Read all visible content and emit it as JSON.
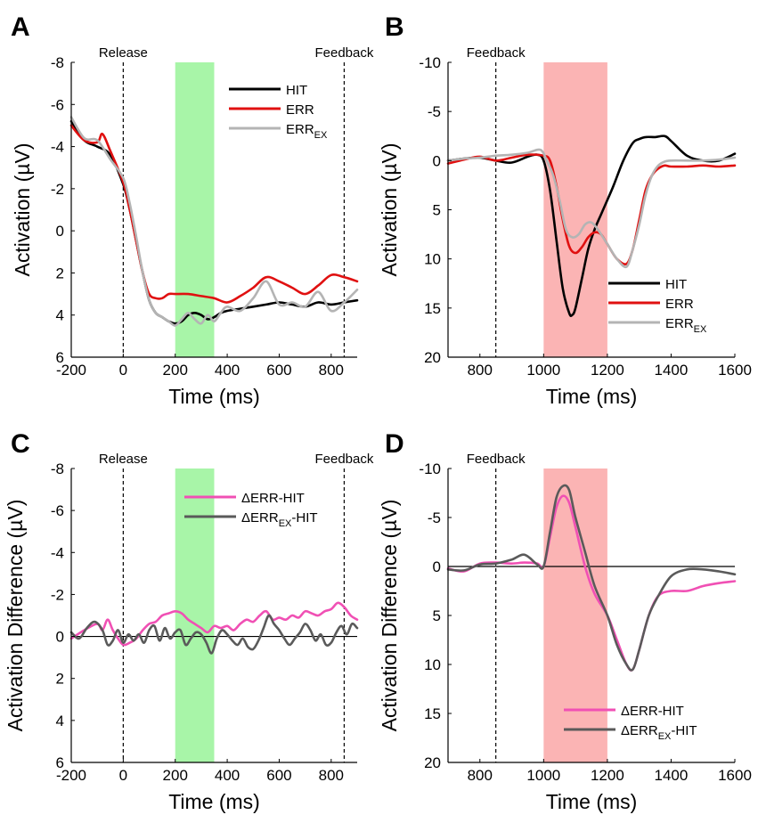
{
  "chart_data": [
    {
      "panel": "A",
      "type": "line",
      "xlabel": "Time (ms)",
      "ylabel": "Activation (µV)",
      "xlim": [
        -200,
        900
      ],
      "ylim": [
        -8,
        6
      ],
      "y_reversed": true,
      "xticks": [
        -200,
        0,
        200,
        400,
        600,
        800
      ],
      "yticks": [
        -8,
        -6,
        -4,
        -2,
        0,
        2,
        4,
        6
      ],
      "events": [
        {
          "x": 0,
          "label": "Release"
        },
        {
          "x": 850,
          "label": "Feedback"
        }
      ],
      "shade": {
        "x0": 200,
        "x1": 350,
        "color": "#a8f5a8"
      },
      "legend_position": "top-right",
      "series": [
        {
          "name": "HIT",
          "color": "#000000",
          "x": [
            -200,
            -150,
            -100,
            -50,
            0,
            25,
            50,
            75,
            100,
            125,
            150,
            175,
            200,
            225,
            250,
            275,
            300,
            325,
            350,
            375,
            400,
            450,
            500,
            550,
            600,
            650,
            700,
            750,
            800,
            850,
            900
          ],
          "y": [
            -5.2,
            -4.3,
            -4.0,
            -3.6,
            -2.2,
            -1.0,
            0.5,
            2.0,
            3.3,
            3.9,
            4.1,
            4.3,
            4.4,
            4.3,
            4.0,
            3.9,
            4.0,
            4.2,
            4.1,
            3.9,
            3.8,
            3.7,
            3.6,
            3.5,
            3.4,
            3.5,
            3.6,
            3.4,
            3.5,
            3.4,
            3.3
          ]
        },
        {
          "name": "ERR",
          "color": "#e01010",
          "x": [
            -200,
            -150,
            -100,
            -80,
            -50,
            0,
            25,
            50,
            75,
            100,
            125,
            150,
            175,
            200,
            250,
            300,
            350,
            400,
            450,
            500,
            550,
            600,
            650,
            700,
            750,
            800,
            850,
            900
          ],
          "y": [
            -5.0,
            -4.3,
            -4.2,
            -4.6,
            -3.8,
            -2.3,
            -1.0,
            0.5,
            2.0,
            3.0,
            3.2,
            3.2,
            3.0,
            3.0,
            3.0,
            3.1,
            3.2,
            3.4,
            3.1,
            2.7,
            2.2,
            2.4,
            2.7,
            3.0,
            2.6,
            2.1,
            2.2,
            2.4
          ]
        },
        {
          "name": "ERR",
          "sub": "EX",
          "color": "#b4b4b4",
          "x": [
            -200,
            -150,
            -100,
            -50,
            0,
            25,
            50,
            75,
            100,
            125,
            150,
            175,
            200,
            225,
            250,
            275,
            300,
            325,
            350,
            375,
            400,
            450,
            500,
            550,
            600,
            650,
            700,
            750,
            800,
            850,
            900
          ],
          "y": [
            -5.4,
            -4.4,
            -4.3,
            -3.4,
            -2.5,
            -1.3,
            0.3,
            2.0,
            3.3,
            3.9,
            4.1,
            4.3,
            4.5,
            4.2,
            3.9,
            4.2,
            4.4,
            4.0,
            4.3,
            3.9,
            3.6,
            3.8,
            3.2,
            2.4,
            3.5,
            3.4,
            3.6,
            2.9,
            3.8,
            3.4,
            2.8
          ]
        }
      ]
    },
    {
      "panel": "B",
      "type": "line",
      "xlabel": "Time (ms)",
      "ylabel": "Activation (µV)",
      "xlim": [
        700,
        1600
      ],
      "ylim": [
        -10,
        20
      ],
      "y_reversed": true,
      "xticks": [
        800,
        1000,
        1200,
        1400,
        1600
      ],
      "yticks": [
        -10,
        -5,
        0,
        5,
        10,
        15,
        20
      ],
      "events": [
        {
          "x": 850,
          "label": "Feedback"
        }
      ],
      "shade": {
        "x0": 1000,
        "x1": 1200,
        "color": "#fbb4b4"
      },
      "legend_position": "bottom-right",
      "series": [
        {
          "name": "HIT",
          "color": "#000000",
          "x": [
            700,
            750,
            800,
            850,
            900,
            950,
            980,
            1000,
            1020,
            1040,
            1060,
            1080,
            1090,
            1100,
            1120,
            1140,
            1160,
            1180,
            1200,
            1220,
            1250,
            1280,
            1300,
            1320,
            1350,
            1380,
            1400,
            1450,
            1500,
            1550,
            1600
          ],
          "y": [
            0,
            -0.2,
            -0.3,
            0,
            0.2,
            -0.4,
            -0.6,
            0,
            3,
            8,
            13,
            15.5,
            15.7,
            15,
            12,
            9,
            7,
            5.5,
            4,
            2.5,
            0,
            -1.8,
            -2.2,
            -2.4,
            -2.4,
            -2.5,
            -2,
            -0.5,
            0,
            0,
            -0.7
          ]
        },
        {
          "name": "ERR",
          "color": "#e01010",
          "x": [
            700,
            750,
            800,
            850,
            900,
            950,
            1000,
            1020,
            1040,
            1060,
            1080,
            1100,
            1120,
            1140,
            1160,
            1180,
            1200,
            1230,
            1260,
            1280,
            1300,
            1320,
            1340,
            1360,
            1380,
            1400,
            1450,
            1500,
            1550,
            1600
          ],
          "y": [
            0.3,
            -0.1,
            -0.4,
            0,
            -0.3,
            -0.6,
            -0.5,
            0,
            2.5,
            6,
            8.7,
            9.4,
            8.8,
            7.8,
            7.3,
            7.5,
            8.5,
            10,
            10.5,
            9,
            6,
            3,
            1.5,
            0.8,
            0.5,
            0.6,
            0.6,
            0.5,
            0.6,
            0.5
          ]
        },
        {
          "name": "ERR",
          "sub": "EX",
          "color": "#b4b4b4",
          "x": [
            700,
            750,
            800,
            850,
            900,
            950,
            990,
            1010,
            1030,
            1050,
            1070,
            1090,
            1110,
            1130,
            1150,
            1170,
            1200,
            1230,
            1260,
            1280,
            1300,
            1320,
            1340,
            1360,
            1380,
            1400,
            1450,
            1500,
            1550,
            1600
          ],
          "y": [
            0,
            -0.2,
            -0.3,
            -0.5,
            -0.6,
            -0.8,
            -1.1,
            0,
            1.5,
            4,
            7,
            7.8,
            7.5,
            6.5,
            6.3,
            7,
            8.5,
            10,
            10.8,
            9,
            6.5,
            3.5,
            1.5,
            0.5,
            0.1,
            0,
            0,
            0,
            -0.1,
            -0.3
          ]
        }
      ]
    },
    {
      "panel": "C",
      "type": "line",
      "xlabel": "Time (ms)",
      "ylabel": "Activation Difference (µV)",
      "xlim": [
        -200,
        900
      ],
      "ylim": [
        -8,
        6
      ],
      "y_reversed": true,
      "xticks": [
        -200,
        0,
        200,
        400,
        600,
        800
      ],
      "yticks": [
        -8,
        -6,
        -4,
        -2,
        0,
        2,
        4,
        6
      ],
      "events": [
        {
          "x": 0,
          "label": "Release"
        },
        {
          "x": 850,
          "label": "Feedback"
        }
      ],
      "shade": {
        "x0": 200,
        "x1": 350,
        "color": "#a8f5a8"
      },
      "legend_position": "top-right",
      "series": [
        {
          "name": "ΔERR-HIT",
          "color": "#f050b4",
          "x": [
            -200,
            -150,
            -100,
            -80,
            -60,
            -40,
            -20,
            0,
            25,
            50,
            75,
            100,
            125,
            150,
            175,
            200,
            225,
            250,
            275,
            300,
            325,
            350,
            375,
            400,
            425,
            450,
            475,
            500,
            525,
            550,
            575,
            600,
            625,
            650,
            675,
            700,
            725,
            750,
            775,
            800,
            825,
            850,
            875,
            900
          ],
          "y": [
            0.1,
            -0.3,
            -0.6,
            -0.3,
            -0.8,
            -0.3,
            0.1,
            0.4,
            0.3,
            0.1,
            -0.3,
            -0.6,
            -0.7,
            -1.0,
            -1.1,
            -1.2,
            -1.1,
            -0.8,
            -0.6,
            -0.4,
            -0.2,
            -0.5,
            -0.4,
            -0.5,
            -0.3,
            -0.6,
            -0.8,
            -0.7,
            -1.0,
            -1.2,
            -0.8,
            -0.9,
            -0.8,
            -1.0,
            -0.9,
            -1.2,
            -1.1,
            -1.0,
            -1.2,
            -1.3,
            -1.6,
            -1.4,
            -1.0,
            -0.8
          ]
        },
        {
          "name": "ΔERR",
          "sub": "EX",
          "suffix": "-HIT",
          "color": "#5a5a5a",
          "x": [
            -200,
            -170,
            -140,
            -110,
            -80,
            -60,
            -40,
            -20,
            0,
            20,
            40,
            60,
            80,
            100,
            120,
            140,
            160,
            180,
            200,
            220,
            240,
            260,
            280,
            300,
            320,
            340,
            360,
            380,
            400,
            420,
            440,
            460,
            480,
            500,
            520,
            540,
            560,
            580,
            600,
            620,
            640,
            660,
            680,
            700,
            720,
            740,
            760,
            780,
            800,
            820,
            840,
            860,
            880,
            900
          ],
          "y": [
            -0.2,
            0.1,
            -0.4,
            -0.7,
            -0.3,
            0.4,
            0.2,
            -0.3,
            0.3,
            -0.1,
            0.2,
            -0.1,
            0.3,
            -0.3,
            -0.5,
            0.2,
            -0.4,
            0.1,
            -0.2,
            -0.3,
            0.4,
            0.1,
            -0.2,
            -0.1,
            0.3,
            0.8,
            0.1,
            -0.3,
            -0.1,
            0.2,
            0.4,
            0.1,
            0.5,
            0.6,
            0.2,
            -0.4,
            -1.0,
            -0.6,
            -0.3,
            0.1,
            0.4,
            0.1,
            -0.2,
            -0.6,
            -0.3,
            0.2,
            -0.1,
            0.4,
            0.3,
            -0.2,
            -0.5,
            -0.1,
            -0.6,
            -0.4
          ]
        }
      ]
    },
    {
      "panel": "D",
      "type": "line",
      "xlabel": "Time (ms)",
      "ylabel": "Activation Difference (µV)",
      "xlim": [
        700,
        1600
      ],
      "ylim": [
        -10,
        20
      ],
      "y_reversed": true,
      "xticks": [
        800,
        1000,
        1200,
        1400,
        1600
      ],
      "yticks": [
        -10,
        -5,
        0,
        5,
        10,
        15,
        20
      ],
      "events": [
        {
          "x": 850,
          "label": "Feedback"
        }
      ],
      "shade": {
        "x0": 1000,
        "x1": 1200,
        "color": "#fbb4b4"
      },
      "legend_position": "bottom-right",
      "series": [
        {
          "name": "ΔERR-HIT",
          "color": "#f050b4",
          "x": [
            700,
            750,
            800,
            850,
            900,
            940,
            980,
            1000,
            1020,
            1040,
            1060,
            1080,
            1100,
            1130,
            1160,
            1200,
            1230,
            1260,
            1280,
            1300,
            1330,
            1360,
            1400,
            1450,
            1500,
            1550,
            1600
          ],
          "y": [
            0.2,
            0.5,
            -0.3,
            -0.4,
            -0.3,
            -0.4,
            -0.3,
            0,
            -3,
            -6,
            -7.2,
            -6.5,
            -4,
            0,
            2.8,
            5,
            7.5,
            10,
            10.5,
            8.5,
            5,
            3,
            2.5,
            2.5,
            2,
            1.7,
            1.5
          ]
        },
        {
          "name": "ΔERR",
          "sub": "EX",
          "suffix": "-HIT",
          "color": "#5a5a5a",
          "x": [
            700,
            750,
            800,
            850,
            900,
            940,
            980,
            1000,
            1020,
            1040,
            1060,
            1080,
            1100,
            1130,
            1160,
            1200,
            1230,
            1260,
            1280,
            1300,
            1330,
            1360,
            1400,
            1450,
            1500,
            1550,
            1600
          ],
          "y": [
            0.3,
            0.4,
            -0.2,
            -0.3,
            -0.7,
            -1.2,
            -0.2,
            0,
            -3.5,
            -7,
            -8.2,
            -7.8,
            -5,
            -1.5,
            2,
            5,
            8,
            10,
            10.5,
            8.5,
            5,
            3,
            1,
            0.3,
            0.3,
            0.5,
            0.8
          ]
        }
      ]
    }
  ]
}
